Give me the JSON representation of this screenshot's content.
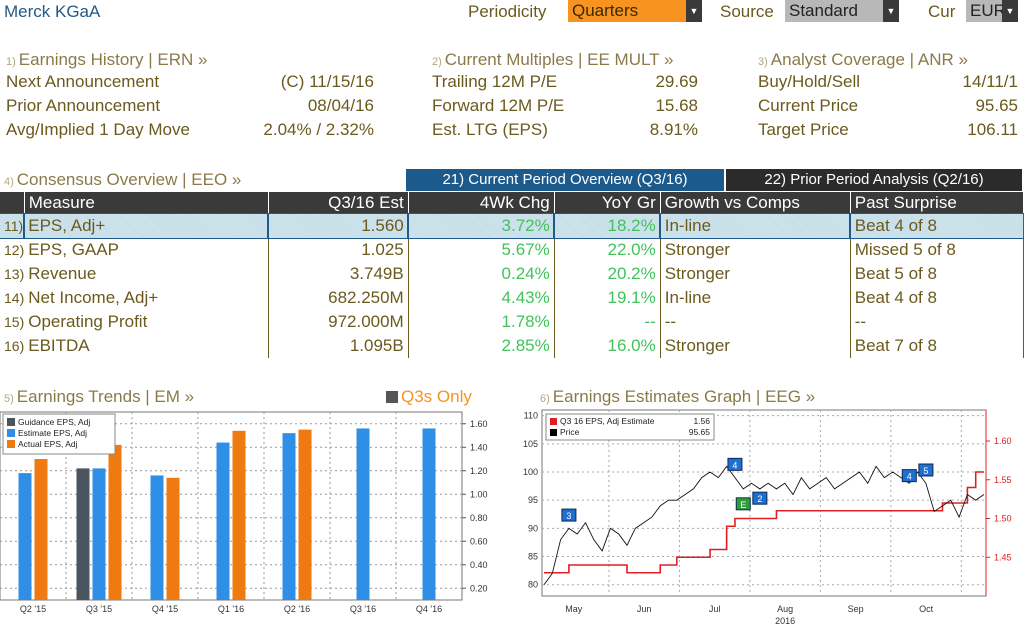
{
  "header": {
    "company": "Merck KGaA",
    "periodicity_label": "Periodicity",
    "periodicity_value": "Quarters",
    "source_label": "Source",
    "source_value": "Standard",
    "currency_label": "Cur",
    "currency_value": "EUR"
  },
  "earnings_history": {
    "num": "1)",
    "title": "Earnings History | ERN »",
    "rows": [
      {
        "label": "Next Announcement",
        "value": "(C)  11/15/16"
      },
      {
        "label": "Prior Announcement",
        "value": "08/04/16"
      },
      {
        "label": "Avg/Implied 1 Day Move",
        "value": "2.04% / 2.32%"
      }
    ]
  },
  "current_multiples": {
    "num": "2)",
    "title": "Current Multiples | EE MULT »",
    "rows": [
      {
        "label": "Trailing 12M P/E",
        "value": "29.69"
      },
      {
        "label": "Forward 12M P/E",
        "value": "15.68"
      },
      {
        "label": "Est. LTG (EPS)",
        "value": "8.91%"
      }
    ]
  },
  "analyst_coverage": {
    "num": "3)",
    "title": "Analyst Coverage | ANR »",
    "rows": [
      {
        "label": "Buy/Hold/Sell",
        "value": "14/11/1"
      },
      {
        "label": "Current Price",
        "value": "95.65"
      },
      {
        "label": "Target Price",
        "value": "106.11"
      }
    ]
  },
  "consensus": {
    "num": "4)",
    "title": "Consensus Overview | EEO »",
    "tab_current": "21) Current Period Overview (Q3/16)",
    "tab_prior": "22) Prior Period Analysis (Q2/16)",
    "columns": [
      "Measure",
      "Q3/16 Est",
      "4Wk Chg",
      "YoY Gr",
      "Growth vs Comps",
      "Past Surprise"
    ],
    "rows": [
      {
        "id": "11)",
        "measure": "EPS, Adj+",
        "est": "1.560",
        "chg": "3.72%",
        "yoy": "18.2%",
        "comps": "In-line",
        "surprise": "Beat 4 of 8"
      },
      {
        "id": "12)",
        "measure": "EPS, GAAP",
        "est": "1.025",
        "chg": "5.67%",
        "yoy": "22.0%",
        "comps": "Stronger",
        "surprise": "Missed 5 of 8"
      },
      {
        "id": "13)",
        "measure": "Revenue",
        "est": "3.749B",
        "chg": "0.24%",
        "yoy": "20.2%",
        "comps": "Stronger",
        "surprise": "Beat 5 of 8"
      },
      {
        "id": "14)",
        "measure": "Net Income, Adj+",
        "est": "682.250M",
        "chg": "4.43%",
        "yoy": "19.1%",
        "comps": "In-line",
        "surprise": "Beat 4 of 8"
      },
      {
        "id": "15)",
        "measure": "Operating Profit",
        "est": "972.000M",
        "chg": "1.78%",
        "yoy": "--",
        "comps": "--",
        "surprise": "--"
      },
      {
        "id": "16)",
        "measure": "EBITDA",
        "est": "1.095B",
        "chg": "2.85%",
        "yoy": "16.0%",
        "comps": "Stronger",
        "surprise": "Beat 7 of 8"
      }
    ]
  },
  "earnings_trends": {
    "num": "5)",
    "title": "Earnings Trends | EM »",
    "q3s_only": "Q3s Only"
  },
  "earnings_estimates": {
    "num": "6)",
    "title": "Earnings Estimates Graph | EEG »"
  },
  "chart_data": [
    {
      "type": "bar",
      "categories": [
        "Q2 '15",
        "Q3 '15",
        "Q4 '15",
        "Q1 '16",
        "Q2 '16",
        "Q3 '16",
        "Q4 '16"
      ],
      "series": [
        {
          "name": "Guidance EPS, Adj",
          "color": "#4a5560",
          "values": [
            null,
            1.22,
            null,
            null,
            null,
            null,
            null
          ]
        },
        {
          "name": "Estimate EPS, Adj",
          "color": "#2f8fe6",
          "values": [
            1.18,
            1.22,
            1.16,
            1.44,
            1.52,
            1.56,
            1.56
          ]
        },
        {
          "name": "Actual EPS, Adj",
          "color": "#f07a12",
          "values": [
            1.3,
            1.42,
            1.14,
            1.54,
            1.55,
            null,
            null
          ]
        }
      ],
      "yticks": [
        "0.20",
        "0.40",
        "0.60",
        "0.80",
        "1.00",
        "1.20",
        "1.40",
        "1.60"
      ],
      "ylim": [
        0.1,
        1.7
      ]
    },
    {
      "type": "line",
      "legend": [
        {
          "name": "Q3 16 EPS, Adj Estimate",
          "value": "1.56",
          "color": "#e02020"
        },
        {
          "name": "Price",
          "value": "95.65",
          "color": "#000000"
        }
      ],
      "x_labels": [
        "May",
        "Jun",
        "Jul",
        "Aug",
        "Sep",
        "Oct"
      ],
      "x_sublabel": "2016",
      "left_ticks": [
        "80",
        "85",
        "90",
        "95",
        "100",
        "105",
        "110"
      ],
      "right_ticks": [
        "1.45",
        "1.50",
        "1.55",
        "1.60"
      ],
      "left_lim": [
        78,
        111
      ],
      "right_lim": [
        1.4,
        1.64
      ],
      "price": [
        80,
        82,
        88,
        90,
        89,
        91,
        88,
        86,
        90,
        89,
        87,
        90,
        91,
        92,
        94,
        95,
        95,
        96,
        97,
        99,
        100,
        99,
        101,
        99,
        97,
        98,
        97,
        98,
        97,
        98,
        96,
        99,
        97,
        98,
        99,
        97,
        98,
        99,
        100,
        98,
        101,
        99,
        100,
        99,
        98,
        100,
        98,
        93,
        94,
        95,
        92,
        96,
        95,
        96
      ],
      "estimate": [
        1.43,
        1.43,
        1.43,
        1.44,
        1.44,
        1.44,
        1.44,
        1.44,
        1.44,
        1.44,
        1.43,
        1.43,
        1.43,
        1.43,
        1.44,
        1.44,
        1.45,
        1.45,
        1.45,
        1.45,
        1.46,
        1.46,
        1.49,
        1.5,
        1.5,
        1.5,
        1.5,
        1.5,
        1.51,
        1.51,
        1.51,
        1.51,
        1.51,
        1.51,
        1.51,
        1.51,
        1.51,
        1.51,
        1.51,
        1.51,
        1.51,
        1.51,
        1.51,
        1.51,
        1.51,
        1.51,
        1.51,
        1.51,
        1.52,
        1.52,
        1.52,
        1.54,
        1.56,
        1.56
      ],
      "markers": [
        {
          "label": "3",
          "x_index": 3,
          "value": 92
        },
        {
          "label": "4",
          "x_index": 23,
          "value": 101
        },
        {
          "label": "E",
          "x_index": 24,
          "value": 94
        },
        {
          "label": "2",
          "x_index": 26,
          "value": 95
        },
        {
          "label": "4",
          "x_index": 44,
          "value": 99
        },
        {
          "label": "5",
          "x_index": 46,
          "value": 100
        }
      ]
    }
  ]
}
